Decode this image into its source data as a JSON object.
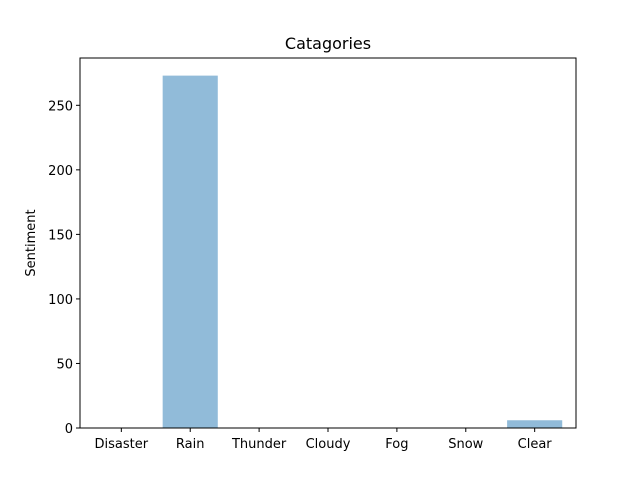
{
  "chart_data": {
    "type": "bar",
    "title": "Catagories",
    "xlabel": "",
    "ylabel": "Sentiment",
    "categories": [
      "Disaster",
      "Rain",
      "Thunder",
      "Cloudy",
      "Fog",
      "Snow",
      "Clear"
    ],
    "values": [
      0,
      273,
      0,
      0,
      0,
      0,
      6
    ],
    "ylim": [
      0,
      286.65
    ],
    "yticks": [
      0,
      50,
      100,
      150,
      200,
      250
    ],
    "ytick_labels": [
      "0",
      "50",
      "100",
      "150",
      "200",
      "250"
    ],
    "bar_color": "#91bbd9",
    "grid": false,
    "legend": "none"
  }
}
